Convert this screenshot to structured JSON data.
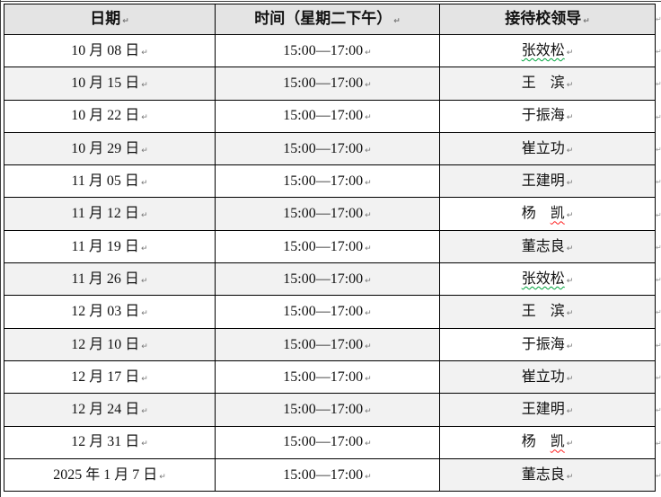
{
  "table": {
    "end_of_cell_mark": "↵",
    "end_of_row_mark": "↵",
    "columns": [
      {
        "label": "日期"
      },
      {
        "label": "时间（星期二下午）"
      },
      {
        "label": "接待校领导"
      }
    ],
    "rows": [
      {
        "date": "10 月 08 日",
        "time": "15:00—17:00",
        "leader": "张效松",
        "shade_left": false,
        "shade_leader": false,
        "squiggle": "green",
        "squiggle_text": "张效松"
      },
      {
        "date": "10 月 15 日",
        "time": "15:00—17:00",
        "leader": "王　滨",
        "shade_left": true,
        "shade_leader": true
      },
      {
        "date": "10 月 22 日",
        "time": "15:00—17:00",
        "leader": "于振海",
        "shade_left": false,
        "shade_leader": false
      },
      {
        "date": "10 月 29 日",
        "time": "15:00—17:00",
        "leader": "崔立功",
        "shade_left": true,
        "shade_leader": true
      },
      {
        "date": "11 月 05 日",
        "time": "15:00—17:00",
        "leader": "王建明",
        "shade_left": false,
        "shade_leader": true
      },
      {
        "date": "11 月 12 日",
        "time": "15:00—17:00",
        "leader": "杨　凯",
        "shade_left": true,
        "shade_leader": false,
        "squiggle": "red",
        "squiggle_text": "凯"
      },
      {
        "date": "11 月 19 日",
        "time": "15:00—17:00",
        "leader": "董志良",
        "shade_left": false,
        "shade_leader": true
      },
      {
        "date": "11 月 26 日",
        "time": "15:00—17:00",
        "leader": "张效松",
        "shade_left": true,
        "shade_leader": false,
        "squiggle": "green",
        "squiggle_text": "张效松"
      },
      {
        "date": "12 月 03 日",
        "time": "15:00—17:00",
        "leader": "王　滨",
        "shade_left": false,
        "shade_leader": true
      },
      {
        "date": "12 月 10 日",
        "time": "15:00—17:00",
        "leader": "于振海",
        "shade_left": true,
        "shade_leader": false
      },
      {
        "date": "12 月 17 日",
        "time": "15:00—17:00",
        "leader": "崔立功",
        "shade_left": false,
        "shade_leader": true
      },
      {
        "date": "12 月 24 日",
        "time": "15:00—17:00",
        "leader": "王建明",
        "shade_left": true,
        "shade_leader": true
      },
      {
        "date": "12 月 31 日",
        "time": "15:00—17:00",
        "leader": "杨　凯",
        "shade_left": false,
        "shade_leader": false,
        "squiggle": "red",
        "squiggle_text": "凯"
      },
      {
        "date": "2025 年 1 月 7 日",
        "time": "15:00—17:00",
        "leader": "董志良",
        "shade_left": false,
        "shade_leader": true
      }
    ]
  },
  "colors": {
    "header_bg": "#e4e4e4",
    "row_shade": "#f2f2f2",
    "border": "#000000",
    "squiggle_green": "#00a33d",
    "squiggle_red": "#ff2222",
    "mark": "#777777"
  }
}
